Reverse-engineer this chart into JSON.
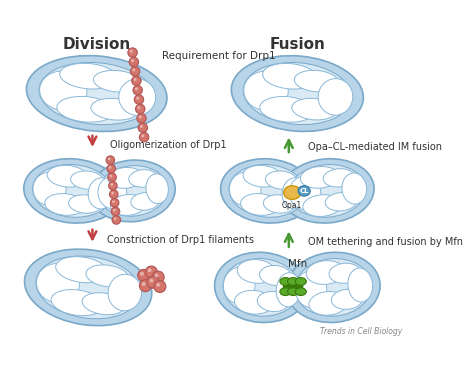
{
  "bg_color": "#ffffff",
  "mito_outer_color": "#b8d4e8",
  "mito_outer_edge": "#7aA8c8",
  "mito_inner_color": "#daeaf5",
  "cristae_color": "#ffffff",
  "cristae_edge": "#8ab8d8",
  "drp1_color": "#d4756b",
  "drp1_edge": "#b05555",
  "cl_color": "#5a9fc8",
  "opa1_color": "#e8b84b",
  "opa1_edge": "#c8980b",
  "mfn_color": "#5aaa2a",
  "mfn_edge": "#3a7a0a",
  "arrow_red": "#c04040",
  "arrow_green": "#449933",
  "division_label": "Division",
  "fusion_label": "Fusion",
  "label1": "Requirement for Drp1",
  "label2": "Oligomerization of Drp1",
  "label3": "Constriction of Drp1 filaments",
  "label4": "Opa–CL-mediated IM fusion",
  "label5": "OM tethering and fusion by Mfn",
  "label_opa1": "Opa1",
  "label_cl": "CL",
  "label_mfn": "Mfn",
  "watermark": "Trends in Cell Biology",
  "text_color": "#333333"
}
